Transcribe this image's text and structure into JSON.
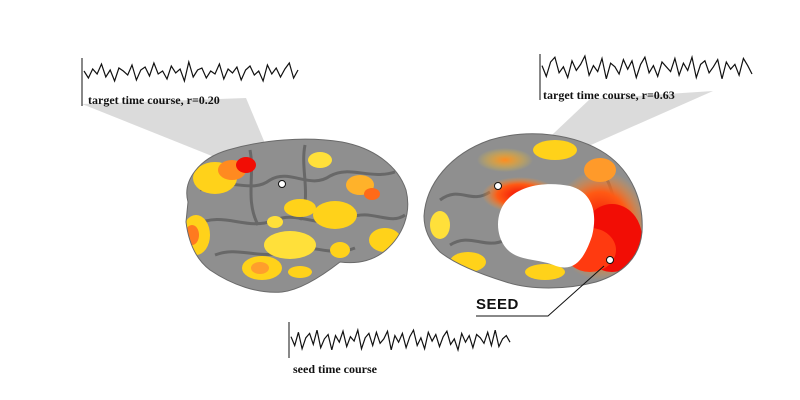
{
  "labels": {
    "target_left": "target time course, r=0.20",
    "target_right": "target time course, r=0.63",
    "seed_time_course": "seed time course",
    "seed": "SEED"
  },
  "colors": {
    "cortex": "#8f8f8f",
    "cortex_dark": "#5e5e5e",
    "activation_low": "#ffd21a",
    "activation_mid": "#ff9a2a",
    "activation_high": "#f20d05",
    "projection_cone": "#bdbdbd",
    "trace": "#111111"
  },
  "time_courses": {
    "target_left_values": [
      0.1,
      -0.6,
      0.3,
      -0.2,
      0.8,
      -0.5,
      0.2,
      -0.9,
      0.4,
      0.1,
      -0.3,
      0.7,
      -0.8,
      0.2,
      0.5,
      -0.4,
      0.9,
      -0.2,
      0.1,
      -0.7,
      0.6,
      -0.1,
      0.3,
      -0.9,
      1.0,
      -0.5,
      0.2,
      0.4,
      -0.6,
      0.1,
      -0.2,
      0.8,
      -0.7,
      0.3,
      -0.1,
      0.5,
      -0.8,
      0.2,
      0.6,
      -0.3,
      0.1,
      -0.9,
      0.7,
      -0.2,
      0.4,
      -0.5,
      0.3,
      0.9,
      -0.6,
      0.2
    ],
    "target_right_values": [
      0.2,
      -0.7,
      0.5,
      0.9,
      -0.4,
      0.1,
      -0.8,
      0.6,
      -0.2,
      0.3,
      1.0,
      -0.6,
      0.2,
      -0.3,
      0.8,
      -0.9,
      0.4,
      0.1,
      -0.5,
      0.7,
      -0.1,
      0.6,
      -0.8,
      0.3,
      0.9,
      -0.4,
      0.2,
      -0.7,
      0.5,
      0.1,
      -0.3,
      0.8,
      -0.6,
      0.4,
      -0.2,
      0.9,
      -0.8,
      0.3,
      0.6,
      -0.4,
      0.1,
      0.7,
      -0.9,
      0.5,
      -0.1,
      0.3,
      -0.6,
      0.8,
      0.2,
      -0.5
    ],
    "seed_values": [
      0.3,
      -0.5,
      0.7,
      -0.8,
      0.2,
      0.6,
      -0.4,
      0.9,
      -0.7,
      0.1,
      0.5,
      -0.9,
      0.4,
      -0.2,
      0.8,
      -0.6,
      0.3,
      -0.1,
      0.9,
      -0.8,
      0.2,
      0.6,
      -0.5,
      0.7,
      -0.3,
      0.1,
      0.8,
      -0.9,
      0.4,
      -0.2,
      0.6,
      -0.7,
      0.3,
      0.9,
      -0.5,
      0.2,
      -0.8,
      0.7,
      -0.1,
      0.5,
      -0.6,
      0.3,
      0.8,
      -0.4,
      0.1,
      -0.9,
      0.6,
      -0.2,
      0.4,
      -0.7,
      0.5,
      0.2,
      -0.3,
      0.7,
      -0.5,
      0.9,
      -0.6,
      0.1,
      0.4,
      -0.2
    ]
  }
}
